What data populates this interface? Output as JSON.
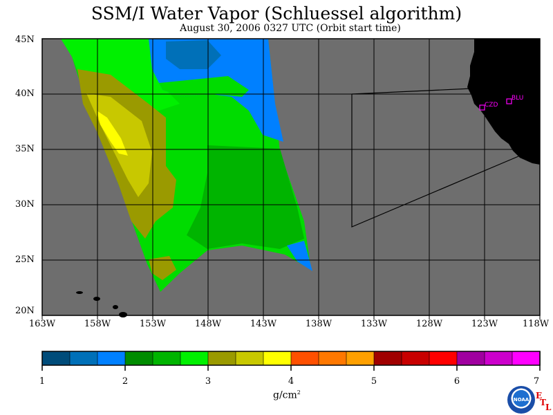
{
  "title": "SSM/I Water Vapor (Schluessel algorithm)",
  "subtitle": "August 30, 2006   0327 UTC  (Orbit start time)",
  "map": {
    "lat_labels": [
      "45N",
      "40N",
      "35N",
      "30N",
      "25N",
      "20N"
    ],
    "lon_labels": [
      "163W",
      "158W",
      "153W",
      "148W",
      "143W",
      "138W",
      "133W",
      "128W",
      "123W",
      "118W"
    ],
    "ocean_color": "#6e6e6e",
    "land_color": "#000000",
    "stations": [
      {
        "name": "CZD",
        "marker_color": "#ff00ff"
      },
      {
        "name": "BLU",
        "marker_color": "#ff00ff"
      }
    ]
  },
  "colorbar": {
    "tick_labels": [
      "1",
      "2",
      "3",
      "4",
      "5",
      "6",
      "7"
    ],
    "units_base": "g/cm",
    "units_exp": "2",
    "min": 1,
    "max": 7,
    "colors": [
      "#004c7a",
      "#0070b8",
      "#0080ff",
      "#008c00",
      "#00b400",
      "#00f000",
      "#9a9a00",
      "#c8c800",
      "#ffff00",
      "#ff5000",
      "#ff7800",
      "#ffa000",
      "#a00000",
      "#c80000",
      "#ff0000",
      "#a000a0",
      "#cc00cc",
      "#ff00ff"
    ]
  },
  "logo": {
    "text": "NOAA"
  },
  "etl": {
    "e": "E",
    "t": "T",
    "l": "L"
  }
}
